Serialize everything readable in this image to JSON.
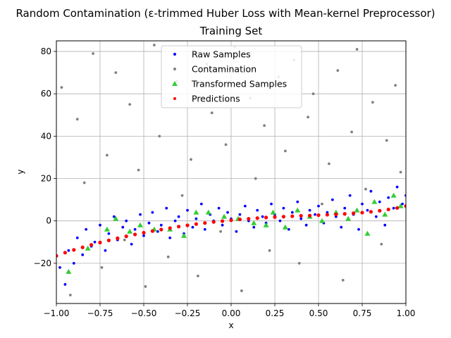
{
  "chart_data": {
    "type": "scatter",
    "title": "Random Contamination (ε-trimmed Huber Loss with Mean-kernel Preprocessor)",
    "subtitle": "Training Set",
    "xlabel": "x",
    "ylabel": "y",
    "xlim": [
      -1.0,
      1.0
    ],
    "ylim": [
      -39,
      85
    ],
    "x_ticks": [
      "−1.00",
      "−0.75",
      "−0.50",
      "−0.25",
      "0.00",
      "0.25",
      "0.50",
      "0.75",
      "1.00"
    ],
    "x_tick_values": [
      -1.0,
      -0.75,
      -0.5,
      -0.25,
      0.0,
      0.25,
      0.5,
      0.75,
      1.0
    ],
    "y_ticks": [
      "−20",
      "0",
      "20",
      "40",
      "60",
      "80"
    ],
    "y_tick_values": [
      -20,
      0,
      20,
      40,
      60,
      80
    ],
    "grid": true,
    "legend_position": "top-center",
    "series": [
      {
        "name": "Raw Samples",
        "color": "#0000ff",
        "marker": "circle",
        "x": [
          -0.98,
          -0.95,
          -0.93,
          -0.9,
          -0.88,
          -0.85,
          -0.83,
          -0.8,
          -0.78,
          -0.75,
          -0.72,
          -0.7,
          -0.67,
          -0.65,
          -0.62,
          -0.6,
          -0.57,
          -0.55,
          -0.52,
          -0.5,
          -0.47,
          -0.45,
          -0.42,
          -0.4,
          -0.37,
          -0.35,
          -0.32,
          -0.3,
          -0.27,
          -0.25,
          -0.22,
          -0.2,
          -0.17,
          -0.15,
          -0.12,
          -0.1,
          -0.07,
          -0.05,
          -0.02,
          0.0,
          0.03,
          0.05,
          0.08,
          0.1,
          0.13,
          0.15,
          0.18,
          0.2,
          0.23,
          0.25,
          0.28,
          0.3,
          0.33,
          0.35,
          0.38,
          0.4,
          0.43,
          0.45,
          0.48,
          0.5,
          0.53,
          0.55,
          0.58,
          0.6,
          0.63,
          0.65,
          0.68,
          0.7,
          0.73,
          0.75,
          0.78,
          0.8,
          0.83,
          0.85,
          0.88,
          0.9,
          0.93,
          0.95,
          0.98,
          1.0
        ],
        "y": [
          -22,
          -30,
          -14,
          -20,
          -8,
          -16,
          -4,
          -12,
          -10,
          -2,
          -14,
          -6,
          2,
          -9,
          -3,
          0,
          -11,
          -4,
          3,
          -7,
          -1,
          4,
          -5,
          -2,
          6,
          -8,
          0,
          2,
          -6,
          5,
          -3,
          1,
          8,
          -4,
          3,
          0,
          6,
          -2,
          4,
          1,
          -5,
          3,
          7,
          0,
          -3,
          5,
          2,
          -1,
          8,
          3,
          0,
          6,
          -4,
          4,
          9,
          1,
          -2,
          5,
          3,
          7,
          -1,
          4,
          10,
          2,
          -3,
          6,
          12,
          3,
          -4,
          8,
          5,
          14,
          2,
          9,
          -2,
          11,
          6,
          16,
          8,
          12
        ]
      },
      {
        "name": "Contamination",
        "color": "#808080",
        "marker": "circle",
        "x": [
          -0.97,
          -0.92,
          -0.88,
          -0.84,
          -0.79,
          -0.74,
          -0.71,
          -0.66,
          -0.61,
          -0.58,
          -0.53,
          -0.49,
          -0.44,
          -0.41,
          -0.36,
          -0.31,
          -0.28,
          -0.23,
          -0.19,
          -0.14,
          -0.11,
          -0.06,
          -0.03,
          0.02,
          0.06,
          0.11,
          0.14,
          0.19,
          0.22,
          0.27,
          0.31,
          0.36,
          0.39,
          0.44,
          0.47,
          0.52,
          0.56,
          0.61,
          0.64,
          0.69,
          0.72,
          0.77,
          0.81,
          0.86,
          0.89,
          0.94,
          0.97
        ],
        "y": [
          63,
          -35,
          48,
          18,
          79,
          -22,
          31,
          70,
          -9,
          55,
          24,
          -31,
          83,
          40,
          -17,
          66,
          12,
          29,
          -26,
          74,
          51,
          -5,
          36,
          82,
          -33,
          58,
          20,
          45,
          -14,
          68,
          33,
          76,
          -20,
          49,
          60,
          8,
          27,
          71,
          -28,
          42,
          81,
          15,
          56,
          -11,
          38,
          64,
          23
        ]
      },
      {
        "name": "Transformed Samples",
        "color": "#33cc33",
        "marker": "triangle",
        "x": [
          -0.93,
          -0.82,
          -0.71,
          -0.66,
          -0.58,
          -0.52,
          -0.44,
          -0.35,
          -0.27,
          -0.2,
          -0.13,
          -0.04,
          0.04,
          0.13,
          0.2,
          0.24,
          0.31,
          0.38,
          0.45,
          0.52,
          0.6,
          0.67,
          0.72,
          0.78,
          0.82,
          0.88,
          0.93,
          0.97
        ],
        "y": [
          -24,
          -13,
          -4,
          1,
          -5,
          -2,
          -4,
          -4,
          -7,
          4,
          4,
          2,
          1,
          -1,
          -2,
          4,
          -3,
          5,
          2,
          0,
          4,
          1,
          5,
          -6,
          9,
          3,
          12,
          7
        ]
      },
      {
        "name": "Predictions",
        "color": "#ff0000",
        "marker": "circle",
        "x": [
          -1.0,
          -0.95,
          -0.9,
          -0.85,
          -0.8,
          -0.75,
          -0.7,
          -0.65,
          -0.6,
          -0.55,
          -0.5,
          -0.45,
          -0.4,
          -0.35,
          -0.3,
          -0.25,
          -0.2,
          -0.15,
          -0.1,
          -0.05,
          0.0,
          0.05,
          0.1,
          0.15,
          0.2,
          0.25,
          0.3,
          0.35,
          0.4,
          0.45,
          0.5,
          0.55,
          0.6,
          0.65,
          0.7,
          0.75,
          0.8,
          0.85,
          0.9,
          0.95,
          1.0
        ],
        "y": [
          -16.5,
          -15.0,
          -13.7,
          -12.5,
          -11.3,
          -10.2,
          -9.2,
          -8.2,
          -7.3,
          -6.4,
          -5.6,
          -4.8,
          -4.1,
          -3.4,
          -2.7,
          -2.1,
          -1.5,
          -1.0,
          -0.5,
          -0.1,
          0.3,
          0.7,
          1.0,
          1.3,
          1.6,
          1.8,
          2.0,
          2.2,
          2.4,
          2.5,
          2.7,
          2.9,
          3.1,
          3.3,
          3.6,
          3.9,
          4.3,
          4.8,
          5.4,
          6.1,
          7.0
        ]
      }
    ]
  }
}
